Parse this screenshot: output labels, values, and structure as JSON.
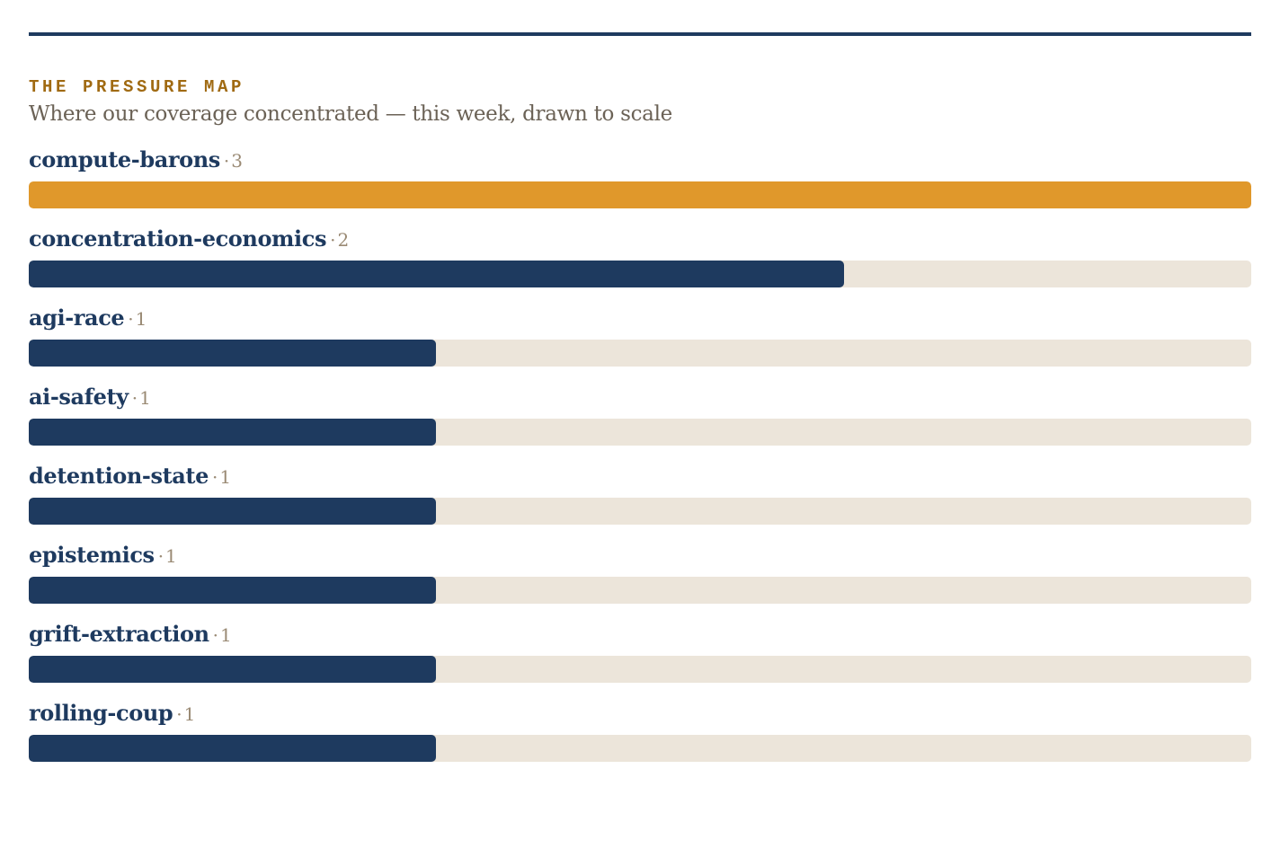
{
  "header": {
    "kicker": "THE PRESSURE MAP",
    "subtitle": "Where our coverage concentrated — this week, drawn to scale"
  },
  "colors": {
    "rule": "#1e3a5f",
    "bar": "#1e3a5f",
    "lead_bar": "#e0982b",
    "track": "#ece5da",
    "kicker": "#a06a12"
  },
  "chart_data": {
    "type": "bar",
    "orientation": "horizontal",
    "title": "THE PRESSURE MAP",
    "subtitle": "Where our coverage concentrated — this week, drawn to scale",
    "separator": "·",
    "xlim": [
      0,
      3
    ],
    "categories": [
      "compute-barons",
      "concentration-economics",
      "agi-race",
      "ai-safety",
      "detention-state",
      "epistemics",
      "grift-extraction",
      "rolling-coup"
    ],
    "values": [
      3,
      2,
      1,
      1,
      1,
      1,
      1,
      1
    ],
    "grid": false,
    "legend": false
  }
}
